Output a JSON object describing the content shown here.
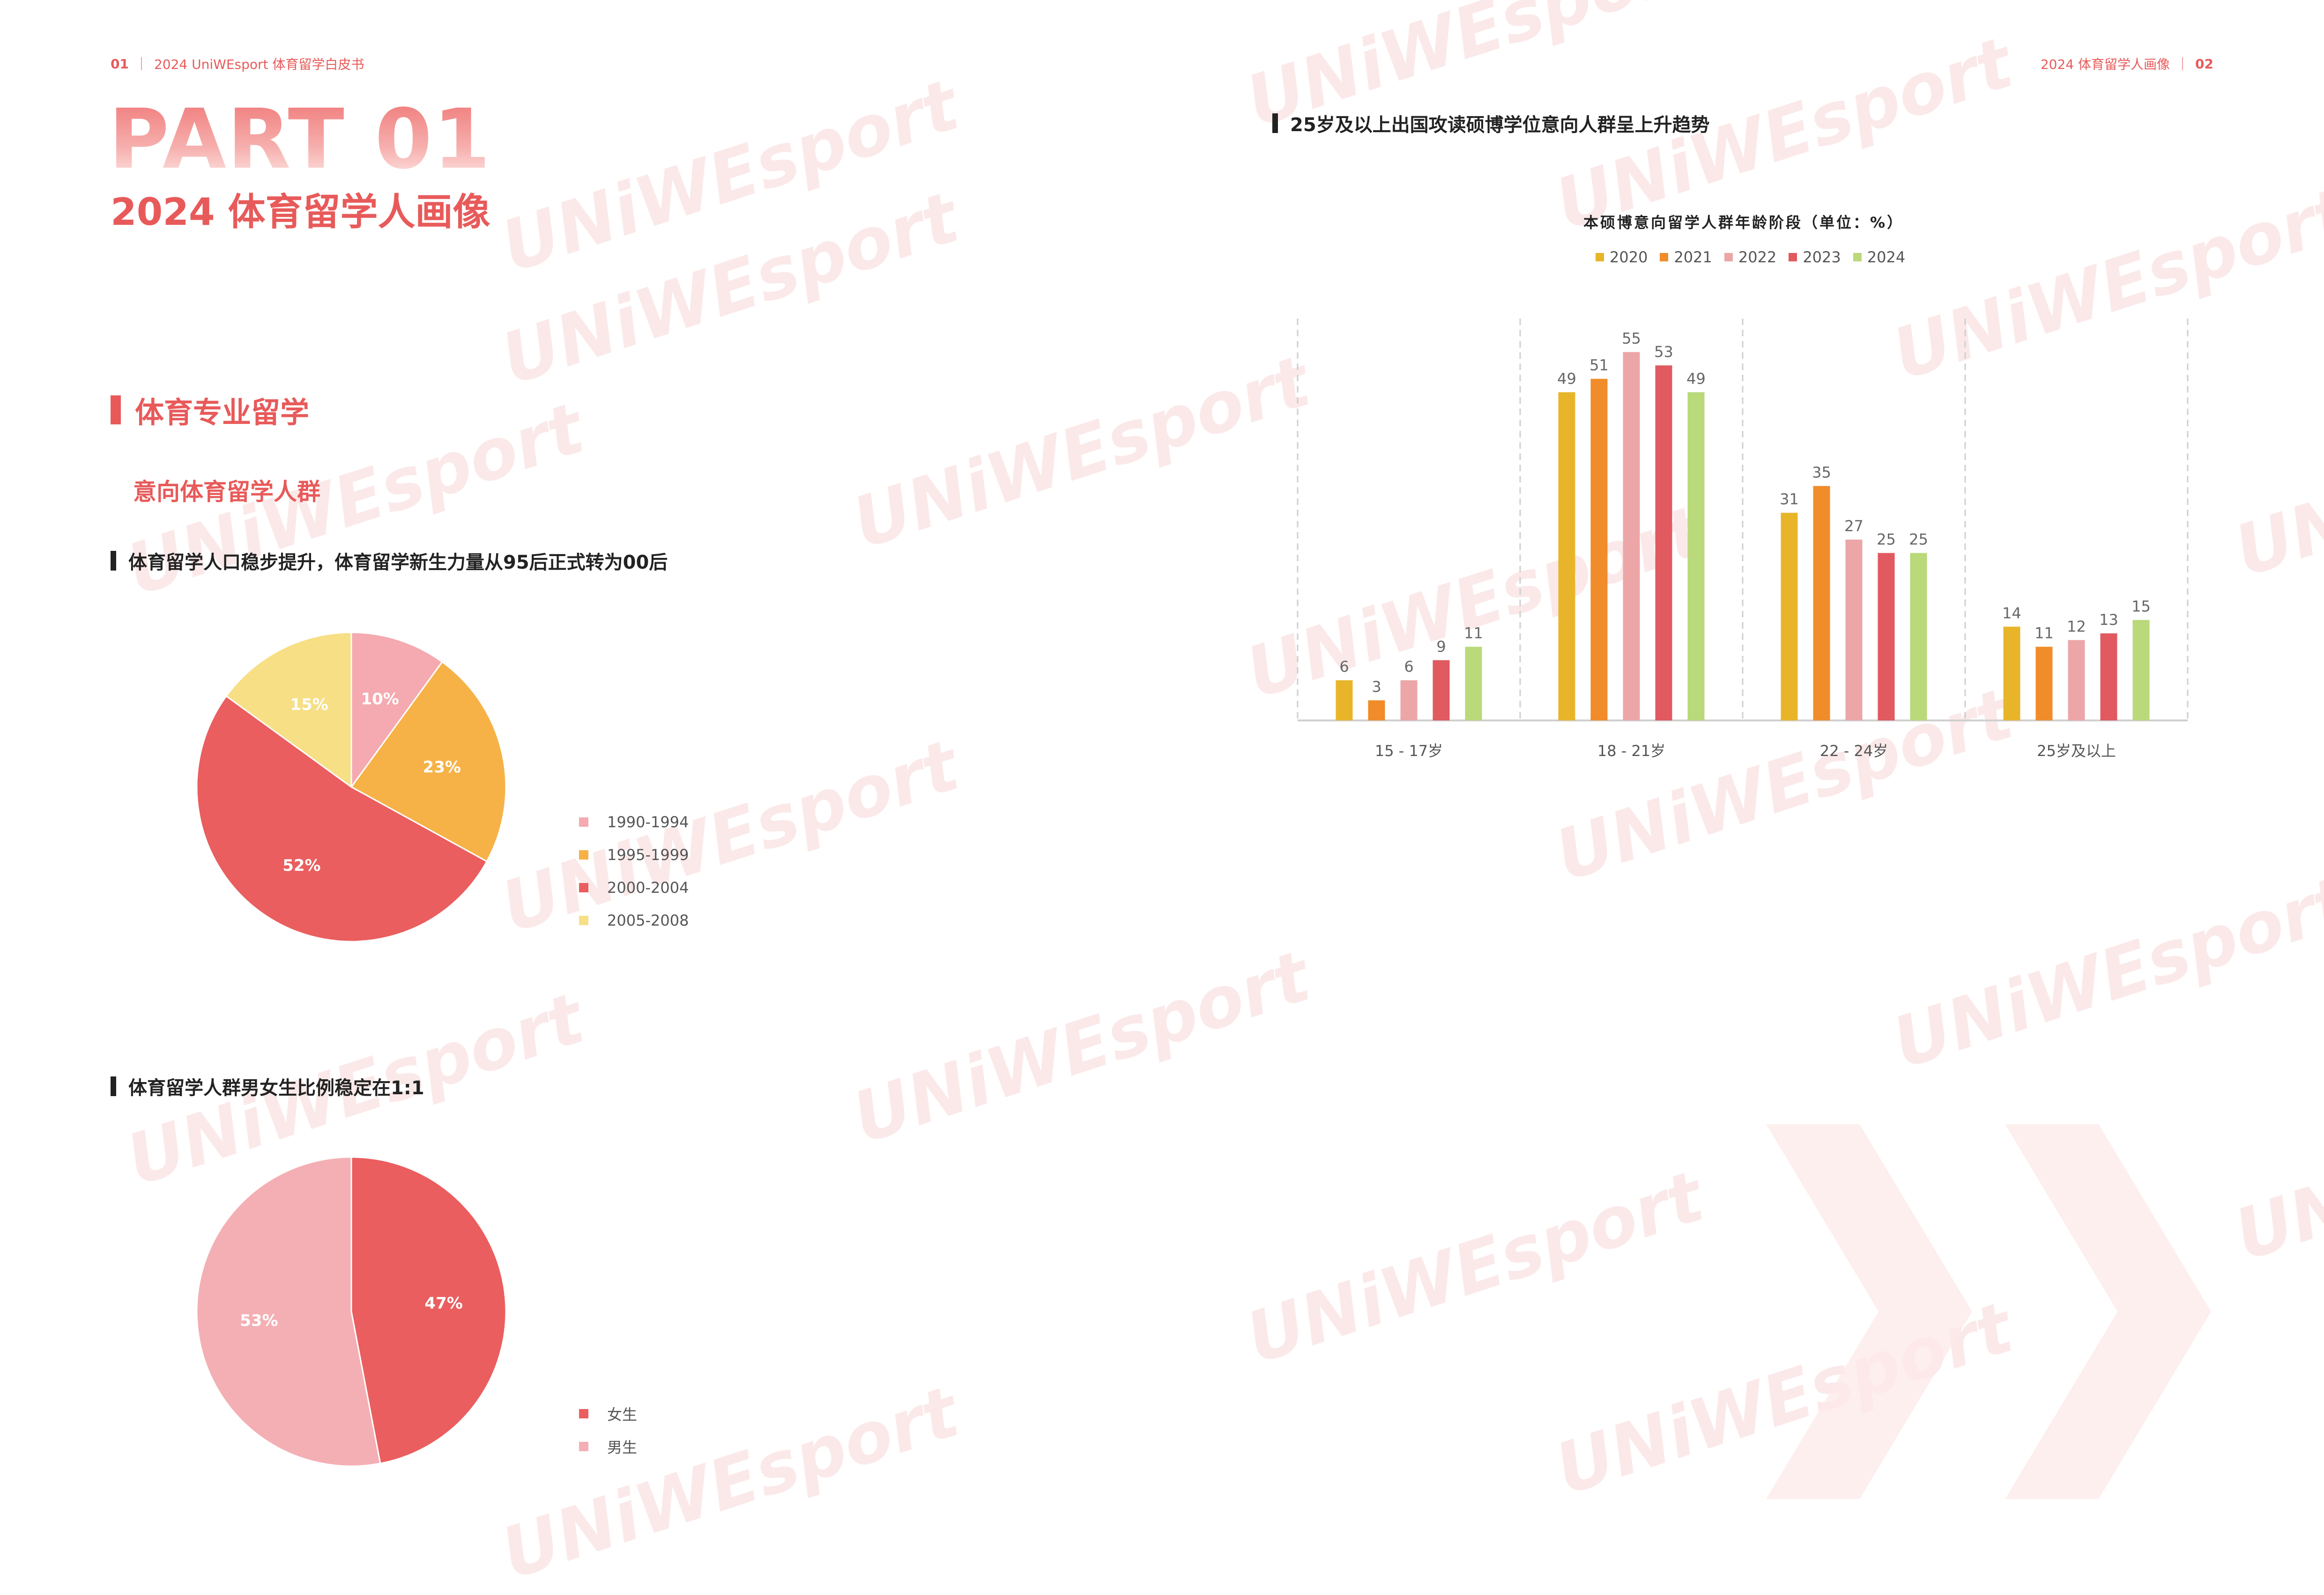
{
  "colors": {
    "accent": "#e85a5a",
    "c2020": "#e8b52a",
    "c2021": "#f08c2a",
    "c2022": "#eca6a8",
    "c2023": "#e05a60",
    "c2024": "#b9d97a",
    "pie_1990_1994": "#f4aab0",
    "pie_1995_1999": "#f6b247",
    "pie_2000_2004": "#ea5e5f",
    "pie_2005_2008": "#f6df85",
    "female": "#ea5e5f",
    "male": "#f4afb4"
  },
  "header": {
    "left_num": "01",
    "left_text": "2024 UniWEsport 体育留学白皮书",
    "right_text": "2024 体育留学人画像",
    "right_num": "02"
  },
  "part": {
    "title": "PART 01",
    "subtitle": "2024 体育留学人画像"
  },
  "section": {
    "title": "体育专业留学",
    "subtitle": "意向体育留学人群"
  },
  "watermark": {
    "text": "UNiWEsport"
  },
  "chart_data": [
    {
      "type": "pie",
      "title": "体育留学人口稳步提升，体育留学新生力量从95后正式转为00后",
      "categories": [
        "1990-1994",
        "1995-1999",
        "2000-2004",
        "2005-2008"
      ],
      "values": [
        10,
        23,
        52,
        15
      ],
      "labels": [
        "10%",
        "23%",
        "52%",
        "15%"
      ],
      "legend_position": "right"
    },
    {
      "type": "pie",
      "title": "体育留学人群男女生比例稳定在1:1",
      "categories": [
        "女生",
        "男生"
      ],
      "values": [
        47,
        53
      ],
      "labels": [
        "47%",
        "53%"
      ],
      "legend_position": "right"
    },
    {
      "type": "bar",
      "title": "25岁及以上出国攻读硕博学位意向人群呈上升趋势",
      "subtitle": "本硕博意向留学人群年龄阶段（单位：%）",
      "categories": [
        "15 - 17岁",
        "18 - 21岁",
        "22 - 24岁",
        "25岁及以上"
      ],
      "series": [
        {
          "name": "2020",
          "values": [
            6,
            49,
            31,
            14
          ]
        },
        {
          "name": "2021",
          "values": [
            3,
            51,
            35,
            11
          ]
        },
        {
          "name": "2022",
          "values": [
            6,
            55,
            27,
            12
          ]
        },
        {
          "name": "2023",
          "values": [
            9,
            53,
            25,
            13
          ]
        },
        {
          "name": "2024",
          "values": [
            11,
            49,
            25,
            15
          ]
        }
      ],
      "ylim": [
        0,
        60
      ],
      "grid": false,
      "legend_position": "top"
    }
  ]
}
